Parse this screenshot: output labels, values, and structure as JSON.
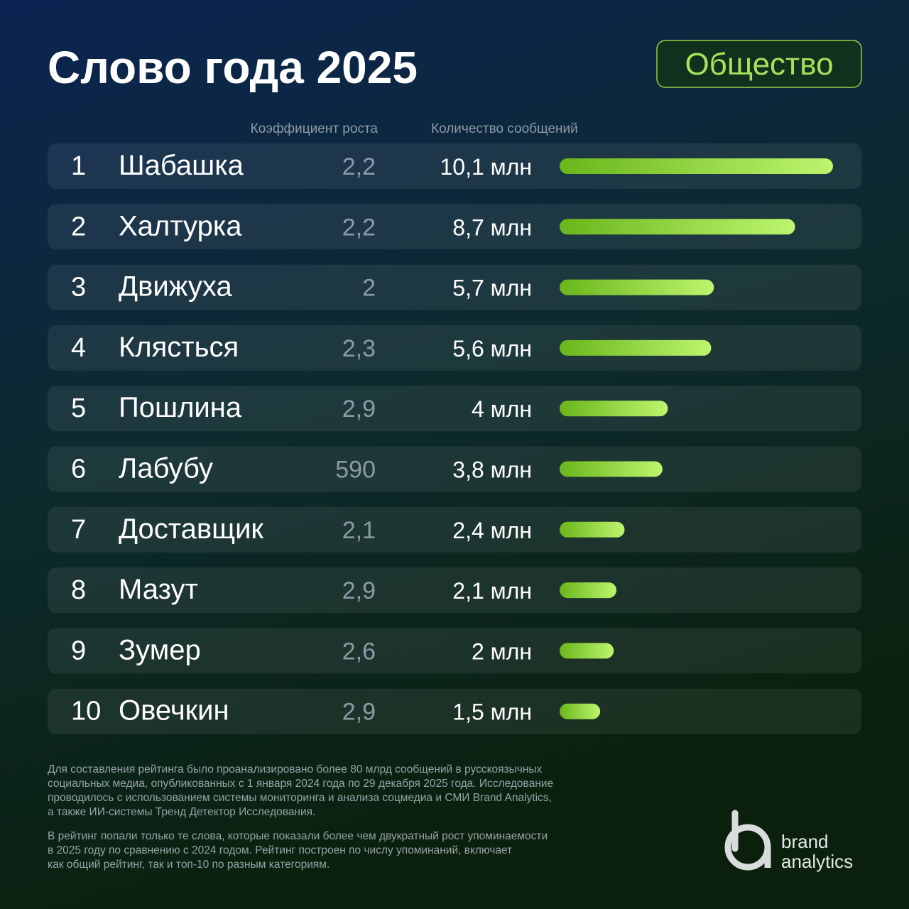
{
  "chart_data": {
    "type": "bar",
    "title": "Слово года 2025",
    "badge": "Общество",
    "column_headers": [
      "Коэффициент роста",
      "Количество сообщений"
    ],
    "ranks": [
      "1",
      "2",
      "3",
      "4",
      "5",
      "6",
      "7",
      "8",
      "9",
      "10"
    ],
    "categories": [
      "Шабашка",
      "Халтурка",
      "Движуха",
      "Клясться",
      "Пошлина",
      "Лабубу",
      "Доставщик",
      "Мазут",
      "Зумер",
      "Овечкин"
    ],
    "growth": [
      "2,2",
      "2,2",
      "2",
      "2,3",
      "2,9",
      "590",
      "2,1",
      "2,9",
      "2,6",
      "2,9"
    ],
    "values": [
      10.1,
      8.7,
      5.7,
      5.6,
      4,
      3.8,
      2.4,
      2.1,
      2,
      1.5
    ],
    "value_labels": [
      "10,1 млн",
      "8,7 млн",
      "5,7 млн",
      "5,6 млн",
      "4 млн",
      "3,8 млн",
      "2,4 млн",
      "2,1 млн",
      "2 млн",
      "1,5 млн"
    ],
    "color": [
      "#6ab61b",
      "#bdf56e"
    ],
    "notes": [
      [
        "Для составления рейтинга было проанализировано более 80 млрд сообщений в русскоязычных",
        "социальных медиа, опубликованных с 1 января 2024 года по 29 декабря 2025 года. Исследование",
        "проводилось с использованием системы мониторинга и анализа соцмедиа и СМИ Brand Analytics,",
        "а также ИИ-системы Тренд Детектор Исследования."
      ],
      [
        "В рейтинг попали только те слова, которые показали более чем двукратный рост упоминаемости",
        "в 2025 году по сравнению с 2024 годом. Рейтинг построен по числу упоминаний, включает",
        "как общий рейтинг, так и топ-10 по разным категориям."
      ]
    ],
    "logo": [
      "brand",
      "analytics"
    ]
  }
}
